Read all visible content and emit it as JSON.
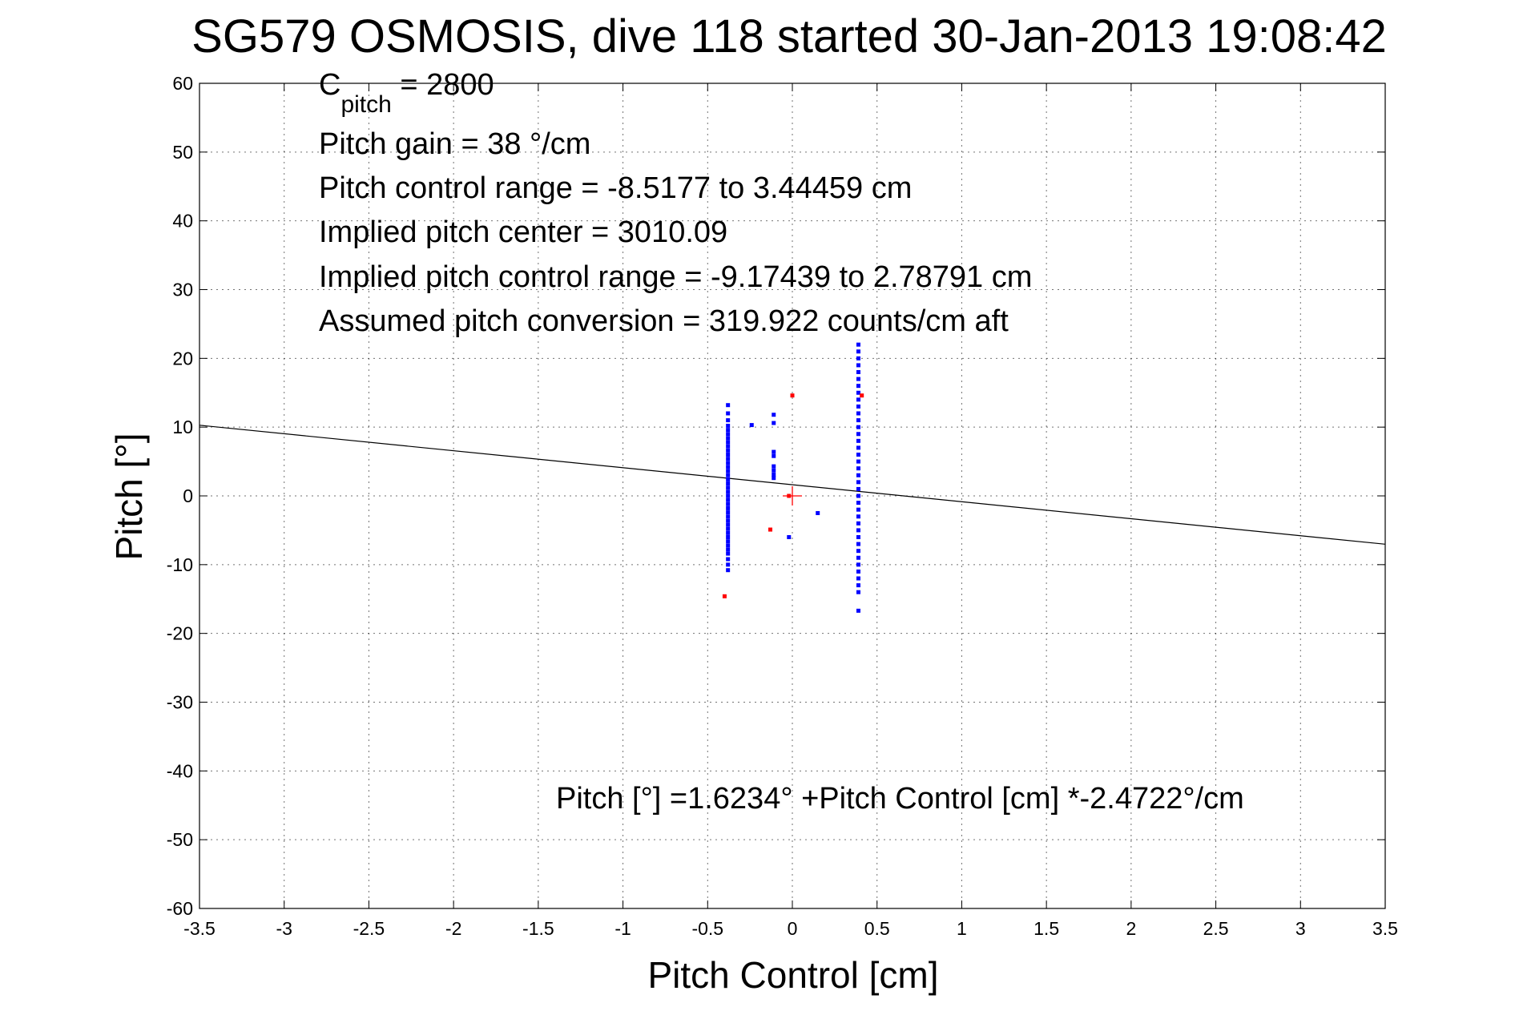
{
  "chart_data": {
    "type": "scatter",
    "title": "SG579 OSMOSIS, dive 118 started 30-Jan-2013 19:08:42",
    "xlabel": "Pitch Control [cm]",
    "ylabel": "Pitch [°]",
    "xlim": [
      -3.5,
      3.5
    ],
    "ylim": [
      -60,
      60
    ],
    "xticks": [
      -3.5,
      -3,
      -2.5,
      -2,
      -1.5,
      -1,
      -0.5,
      0,
      0.5,
      1,
      1.5,
      2,
      2.5,
      3,
      3.5
    ],
    "xtick_labels": [
      "-3.5",
      "-3",
      "-2.5",
      "-2",
      "-1.5",
      "-1",
      "-0.5",
      "0",
      "0.5",
      "1",
      "1.5",
      "2",
      "2.5",
      "3",
      "3.5"
    ],
    "yticks": [
      -60,
      -50,
      -40,
      -30,
      -20,
      -10,
      0,
      10,
      20,
      30,
      40,
      50,
      60
    ],
    "ytick_labels": [
      "-60",
      "-50",
      "-40",
      "-30",
      "-20",
      "-10",
      "0",
      "10",
      "20",
      "30",
      "40",
      "50",
      "60"
    ],
    "grid": true,
    "colors": {
      "used": "#0000ff",
      "rejected": "#ff0000",
      "fit": "#000000",
      "center": "#ff0000"
    },
    "fit_line": {
      "intercept": 1.6234,
      "slope": -2.4722
    },
    "center_marker": {
      "x": 0,
      "y": 0
    },
    "annotations": {
      "c_pitch_main": "C",
      "c_pitch_sub": "pitch",
      "c_pitch_value": " = 2800",
      "pitch_gain": "Pitch gain = 38 °/cm",
      "control_range": "Pitch control range = -8.5177 to 3.44459 cm",
      "implied_center": "Implied pitch center = 3010.09",
      "implied_range": "Implied pitch control range = -9.17439 to 2.78791 cm",
      "assumed_conversion": "Assumed pitch conversion = 319.922 counts/cm aft",
      "equation": "Pitch [°] =1.6234° +Pitch Control [cm] *-2.4722°/cm"
    },
    "series": [
      {
        "points": [
          [
            -0.38,
            13.2
          ],
          [
            -0.38,
            12.0
          ],
          [
            -0.38,
            11.0
          ],
          [
            -0.38,
            10.2
          ],
          [
            -0.38,
            9.6
          ],
          [
            -0.38,
            9.0
          ],
          [
            -0.38,
            8.4
          ],
          [
            -0.38,
            7.8
          ],
          [
            -0.38,
            7.2
          ],
          [
            -0.38,
            6.6
          ],
          [
            -0.38,
            6.0
          ],
          [
            -0.38,
            5.4
          ],
          [
            -0.38,
            4.8
          ],
          [
            -0.38,
            4.2
          ],
          [
            -0.38,
            3.6
          ],
          [
            -0.38,
            3.0
          ],
          [
            -0.38,
            2.4
          ],
          [
            -0.38,
            1.8
          ],
          [
            -0.38,
            1.2
          ],
          [
            -0.38,
            0.6
          ],
          [
            -0.38,
            0.0
          ],
          [
            -0.38,
            -0.6
          ],
          [
            -0.38,
            -1.2
          ],
          [
            -0.38,
            -1.8
          ],
          [
            -0.38,
            -2.4
          ],
          [
            -0.38,
            -3.0
          ],
          [
            -0.38,
            -3.6
          ],
          [
            -0.38,
            -4.2
          ],
          [
            -0.38,
            -4.8
          ],
          [
            -0.38,
            -5.4
          ],
          [
            -0.38,
            -6.0
          ],
          [
            -0.38,
            -6.6
          ],
          [
            -0.38,
            -7.2
          ],
          [
            -0.38,
            -7.8
          ],
          [
            -0.38,
            -8.4
          ],
          [
            -0.38,
            -9.2
          ],
          [
            -0.38,
            -10.0
          ],
          [
            -0.38,
            -10.8
          ],
          [
            -0.24,
            10.3
          ],
          [
            -0.11,
            11.8
          ],
          [
            -0.11,
            10.6
          ],
          [
            -0.11,
            6.4
          ],
          [
            -0.11,
            5.8
          ],
          [
            -0.11,
            4.3
          ],
          [
            -0.11,
            3.7
          ],
          [
            -0.11,
            3.1
          ],
          [
            -0.11,
            2.6
          ],
          [
            -0.02,
            -6.0
          ],
          [
            0.15,
            -2.5
          ],
          [
            0.39,
            22.0
          ],
          [
            0.39,
            21.0
          ],
          [
            0.39,
            20.0
          ],
          [
            0.39,
            19.0
          ],
          [
            0.39,
            18.0
          ],
          [
            0.39,
            17.0
          ],
          [
            0.39,
            16.0
          ],
          [
            0.39,
            15.0
          ],
          [
            0.39,
            14.0
          ],
          [
            0.39,
            13.0
          ],
          [
            0.39,
            12.0
          ],
          [
            0.39,
            11.0
          ],
          [
            0.39,
            10.0
          ],
          [
            0.39,
            9.0
          ],
          [
            0.39,
            8.0
          ],
          [
            0.39,
            7.0
          ],
          [
            0.39,
            6.0
          ],
          [
            0.39,
            5.0
          ],
          [
            0.39,
            4.0
          ],
          [
            0.39,
            3.0
          ],
          [
            0.39,
            2.0
          ],
          [
            0.39,
            1.0
          ],
          [
            0.39,
            0.0
          ],
          [
            0.39,
            -1.0
          ],
          [
            0.39,
            -2.0
          ],
          [
            0.39,
            -3.0
          ],
          [
            0.39,
            -4.0
          ],
          [
            0.39,
            -5.0
          ],
          [
            0.39,
            -6.0
          ],
          [
            0.39,
            -7.0
          ],
          [
            0.39,
            -8.0
          ],
          [
            0.39,
            -9.0
          ],
          [
            0.39,
            -10.0
          ],
          [
            0.39,
            -11.0
          ],
          [
            0.39,
            -12.0
          ],
          [
            0.39,
            -13.0
          ],
          [
            0.39,
            -14.0
          ],
          [
            0.39,
            -16.7
          ]
        ]
      },
      {
        "points": [
          [
            -0.4,
            -14.6
          ],
          [
            -0.13,
            -4.9
          ],
          [
            0.0,
            14.6
          ],
          [
            -0.02,
            0.0
          ],
          [
            0.41,
            14.6
          ]
        ]
      }
    ]
  }
}
